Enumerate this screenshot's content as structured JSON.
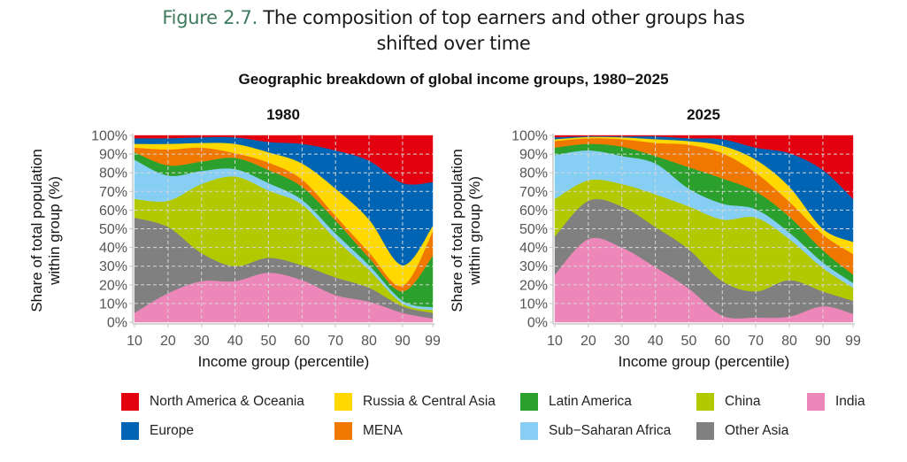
{
  "header": {
    "figure_label": "Figure 2.7.",
    "title_line1": "The composition of top earners and other groups has",
    "title_line2": "shifted over time",
    "subtitle": "Geographic breakdown of global income groups, 1980−2025"
  },
  "legend": [
    {
      "key": "na",
      "label": "North America & Oceania",
      "color": "#e3000f"
    },
    {
      "key": "russia",
      "label": "Russia & Central Asia",
      "color": "#ffd800"
    },
    {
      "key": "latam",
      "label": "Latin America",
      "color": "#2ca02c"
    },
    {
      "key": "china",
      "label": "China",
      "color": "#b2c900"
    },
    {
      "key": "india",
      "label": "India",
      "color": "#ee87b9"
    },
    {
      "key": "europe",
      "label": "Europe",
      "color": "#0064b4"
    },
    {
      "key": "mena",
      "label": "MENA",
      "color": "#f07800"
    },
    {
      "key": "ssa",
      "label": "Sub−Saharan Africa",
      "color": "#87cef5"
    },
    {
      "key": "otherasia",
      "label": "Other Asia",
      "color": "#808080"
    }
  ],
  "chart_data": [
    {
      "type": "area",
      "stacked": true,
      "title": "1980",
      "xlabel": "Income group (percentile)",
      "ylabel": "Share of total population within group (%)",
      "x": [
        10,
        20,
        30,
        40,
        50,
        60,
        70,
        80,
        90,
        99
      ],
      "xticks": [
        "10",
        "20",
        "30",
        "40",
        "50",
        "60",
        "70",
        "80",
        "90",
        "99"
      ],
      "xlim": [
        10,
        99
      ],
      "ylim": [
        0,
        100
      ],
      "yticks": [
        "0%",
        "10%",
        "20%",
        "30%",
        "40%",
        "50%",
        "60%",
        "70%",
        "80%",
        "90%",
        "100%"
      ],
      "grid": true,
      "series": [
        {
          "name": "India",
          "color": "#ee87b9",
          "values": [
            5,
            15.5,
            22,
            22,
            26.5,
            22.5,
            14.5,
            11,
            5,
            2
          ]
        },
        {
          "name": "Other Asia",
          "color": "#808080",
          "values": [
            51,
            35.5,
            15,
            8,
            8,
            8,
            9.5,
            7.5,
            3.5,
            3
          ]
        },
        {
          "name": "China",
          "color": "#b2c900",
          "values": [
            10,
            14,
            37,
            48,
            36,
            32.5,
            20.5,
            9.5,
            1.5,
            1.5
          ]
        },
        {
          "name": "Sub−Saharan Africa",
          "color": "#87cef5",
          "values": [
            21,
            13.5,
            7,
            4,
            4,
            2.5,
            3,
            2.5,
            1.5,
            1.5
          ]
        },
        {
          "name": "Latin America",
          "color": "#2ca02c",
          "values": [
            4,
            5.5,
            5,
            6,
            7,
            7,
            7,
            4,
            5,
            27.5
          ]
        },
        {
          "name": "MENA",
          "color": "#f07800",
          "values": [
            2.5,
            8.5,
            7.5,
            2.5,
            4,
            4,
            2.5,
            3,
            3,
            13
          ]
        },
        {
          "name": "Russia & Central Asia",
          "color": "#ffd800",
          "values": [
            2,
            3,
            2.5,
            5,
            5.5,
            8.5,
            14.5,
            17.5,
            11,
            3
          ]
        },
        {
          "name": "Europe",
          "color": "#0064b4",
          "values": [
            3,
            3,
            3,
            3.5,
            5.5,
            10.5,
            20.5,
            31.5,
            44,
            23.5
          ]
        },
        {
          "name": "North America & Oceania",
          "color": "#e3000f",
          "values": [
            1.5,
            1.5,
            1,
            1,
            3.5,
            4.5,
            8,
            13.5,
            25.5,
            25
          ]
        }
      ]
    },
    {
      "type": "area",
      "stacked": true,
      "title": "2025",
      "xlabel": "Income group (percentile)",
      "ylabel": "Share of total population within group (%)",
      "x": [
        10,
        20,
        30,
        40,
        50,
        60,
        70,
        80,
        90,
        99
      ],
      "xticks": [
        "10",
        "20",
        "30",
        "40",
        "50",
        "60",
        "70",
        "80",
        "90",
        "99"
      ],
      "xlim": [
        10,
        99
      ],
      "ylim": [
        0,
        100
      ],
      "yticks": [
        "0%",
        "10%",
        "20%",
        "30%",
        "40%",
        "50%",
        "60%",
        "70%",
        "80%",
        "90%",
        "100%"
      ],
      "grid": true,
      "series": [
        {
          "name": "India",
          "color": "#ee87b9",
          "values": [
            25.5,
            44.5,
            40,
            29.5,
            18,
            3.5,
            2.5,
            3,
            8.5,
            4.5
          ]
        },
        {
          "name": "Other Asia",
          "color": "#808080",
          "values": [
            20.5,
            20.5,
            22,
            21.5,
            21,
            18.5,
            14,
            19.5,
            8,
            7
          ]
        },
        {
          "name": "China",
          "color": "#b2c900",
          "values": [
            20,
            11,
            12,
            17.5,
            23,
            33,
            39.5,
            22,
            12.5,
            7
          ]
        },
        {
          "name": "Sub−Saharan Africa",
          "color": "#87cef5",
          "values": [
            23.5,
            16,
            15,
            16.5,
            9.5,
            8.5,
            4.5,
            3.5,
            3,
            2.5
          ]
        },
        {
          "name": "Latin America",
          "color": "#2ca02c",
          "values": [
            4,
            3.5,
            5,
            4,
            11.5,
            13.5,
            9.5,
            8.5,
            6.5,
            4.5
          ]
        },
        {
          "name": "MENA",
          "color": "#f07800",
          "values": [
            3.5,
            3,
            4,
            7,
            12,
            13.5,
            10,
            8,
            8.5,
            11
          ]
        },
        {
          "name": "Russia & Central Asia",
          "color": "#ffd800",
          "values": [
            1,
            0.7,
            1,
            2,
            2,
            4,
            7,
            8,
            3,
            6.5
          ]
        },
        {
          "name": "Europe",
          "color": "#0064b4",
          "values": [
            1,
            0.4,
            0.5,
            1.5,
            1.5,
            3.5,
            6.5,
            18,
            31.5,
            23
          ]
        },
        {
          "name": "North America & Oceania",
          "color": "#e3000f",
          "values": [
            1,
            0.4,
            0.5,
            0.5,
            1.5,
            2,
            6.5,
            9.5,
            18.5,
            34
          ]
        }
      ]
    }
  ]
}
